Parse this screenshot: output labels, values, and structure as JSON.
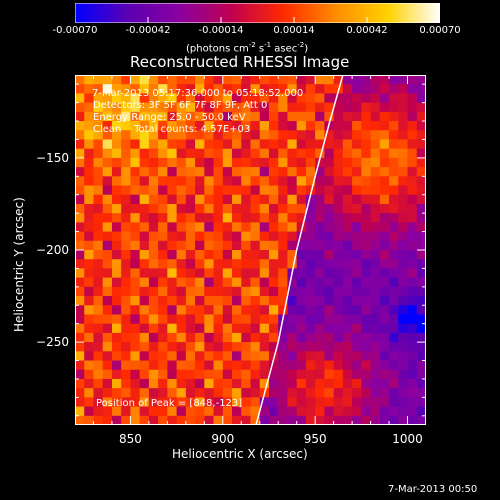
{
  "chart_data": {
    "type": "heatmap",
    "title": "Reconstructed RHESSI Image",
    "xlabel": "Heliocentric X (arcsec)",
    "ylabel": "Heliocentric Y (arcsec)",
    "xlim": [
      820,
      1010
    ],
    "ylim": [
      -295,
      -105
    ],
    "x_ticks": [
      850,
      900,
      950,
      1000
    ],
    "y_ticks": [
      -150,
      -200,
      -250
    ],
    "colorbar": {
      "ticks": [
        -0.0007,
        -0.00042,
        -0.00014,
        0.00014,
        0.00042,
        0.0007
      ],
      "tick_labels": [
        "-0.00070",
        "-0.00042",
        "-0.00014",
        "0.00014",
        "0.00042",
        "0.00070"
      ],
      "unit_prefix": "(photons cm",
      "unit_sup1": "-2",
      "unit_mid": " s",
      "unit_sup2": "-1",
      "unit_mid2": " asec",
      "unit_sup3": "-2",
      "unit_suffix": ")",
      "range": [
        -0.0007,
        0.0007
      ],
      "colors": [
        "#0000ff",
        "#5a00b4",
        "#8a00a0",
        "#c00050",
        "#ff2a00",
        "#ff8c00",
        "#ffd200",
        "#ffffff"
      ]
    },
    "annotations": {
      "time_range": "7-Mar-2013 05:17:36.000 to 05:18:52.000",
      "detectors": "Detectors: 3F 5F 6F 7F 8F 9F, Att 0",
      "energy_range": "Energy Range: 25.0 - 50.0 keV",
      "method_counts": "Clean    Total counts: 4.57E+03",
      "peak_position": "Position of Peak = [848,-123]"
    },
    "limb": [
      [
        918,
        -295
      ],
      [
        930,
        -250
      ],
      [
        940,
        -200
      ],
      [
        950,
        -160
      ],
      [
        958,
        -130
      ],
      [
        965,
        -105
      ]
    ],
    "peak": [
      848,
      -123
    ],
    "grid": false
  },
  "footer": {
    "timestamp": "7-Mar-2013 00:50"
  }
}
